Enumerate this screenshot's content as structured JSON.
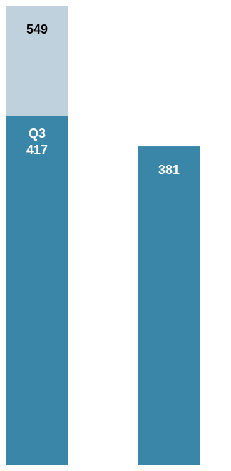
{
  "chart_data": {
    "type": "bar",
    "stacked": true,
    "categories": [
      "",
      ""
    ],
    "series": [
      {
        "name": "Q3",
        "values": [
          417,
          381
        ],
        "color": "#3a86a8",
        "value_labels": [
          "417",
          "381"
        ]
      },
      {
        "name": "",
        "values": [
          132,
          0
        ],
        "totals": [
          549,
          null
        ],
        "color": "#c0d1de",
        "value_labels": [
          "549",
          ""
        ]
      }
    ],
    "segment_label_prefix": [
      "Q3",
      ""
    ],
    "ylim": [
      0,
      549
    ],
    "grid": false,
    "legend": "none"
  }
}
